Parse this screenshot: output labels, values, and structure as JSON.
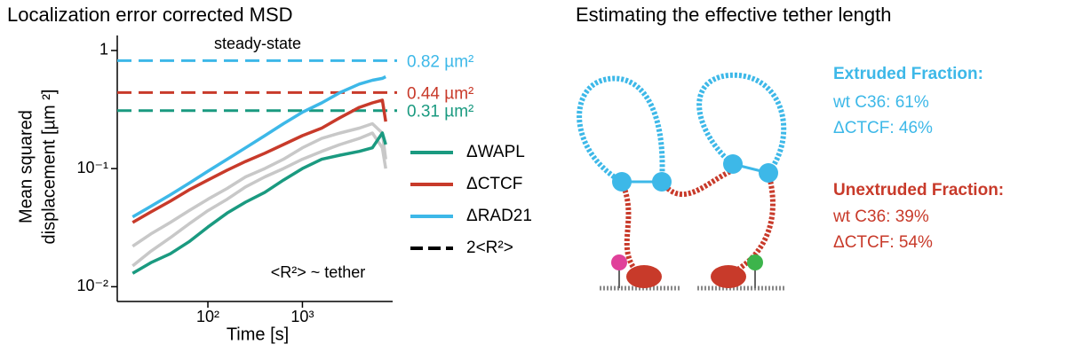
{
  "chart_data": {
    "type": "line",
    "title": "Localization error corrected MSD",
    "x_label": "Time [s]",
    "y_label": [
      "Mean squared",
      "displacement [µm ²]"
    ],
    "log_x": true,
    "log_y": true,
    "xlim": [
      11,
      9000
    ],
    "ylim": [
      0.0075,
      1.34
    ],
    "xticks": [
      {
        "value": 100,
        "label": "10²"
      },
      {
        "value": 1000,
        "label": "10³"
      }
    ],
    "yticks": [
      {
        "value": 0.01,
        "label": "10⁻²"
      },
      {
        "value": 0.1,
        "label": "10⁻¹"
      },
      1
    ],
    "x": [
      16,
      25,
      40,
      63,
      100,
      160,
      250,
      400,
      630,
      1000,
      1600,
      2500,
      4000,
      5500,
      7000,
      7600
    ],
    "series": [
      {
        "color": "#c8c8c8",
        "values": [
          0.022,
          0.028,
          0.035,
          0.044,
          0.055,
          0.068,
          0.085,
          0.1,
          0.12,
          0.15,
          0.18,
          0.2,
          0.22,
          0.24,
          0.2,
          0.12
        ]
      },
      {
        "color": "#c8c8c8",
        "values": [
          0.015,
          0.02,
          0.026,
          0.034,
          0.044,
          0.055,
          0.07,
          0.085,
          0.1,
          0.12,
          0.14,
          0.16,
          0.18,
          0.2,
          0.15,
          0.1
        ]
      },
      {
        "name": "ΔWAPL",
        "color": "#1a9a80",
        "values": [
          0.013,
          0.016,
          0.019,
          0.024,
          0.032,
          0.042,
          0.052,
          0.063,
          0.08,
          0.1,
          0.12,
          0.13,
          0.14,
          0.15,
          0.2,
          0.16
        ]
      },
      {
        "name": "ΔCTCF",
        "color": "#c83a2a",
        "values": [
          0.035,
          0.043,
          0.053,
          0.066,
          0.08,
          0.097,
          0.115,
          0.135,
          0.16,
          0.19,
          0.22,
          0.27,
          0.33,
          0.36,
          0.38,
          0.25
        ]
      },
      {
        "name": "ΔRAD21",
        "color": "#3db8e8",
        "values": [
          0.039,
          0.048,
          0.06,
          0.075,
          0.095,
          0.12,
          0.15,
          0.19,
          0.24,
          0.3,
          0.36,
          0.44,
          0.52,
          0.56,
          0.58,
          0.6
        ]
      }
    ],
    "reference_lines": [
      {
        "value": 0.82,
        "label": "0.82 µm²",
        "color": "#3db8e8"
      },
      {
        "value": 0.44,
        "label": "0.44 µm²",
        "color": "#c83a2a"
      },
      {
        "value": 0.31,
        "label": "0.31 µm²",
        "color": "#1a9a80"
      }
    ],
    "reference_legend": "2<R²>",
    "annotations": [
      "steady-state",
      "<R²> ~ tether"
    ]
  },
  "diagram": {
    "title": "Estimating the effective tether length",
    "extruded": {
      "heading": "Extruded Fraction:",
      "lines": [
        "wt C36: 61%",
        "ΔCTCF: 46%"
      ]
    },
    "unextruded": {
      "heading": "Unextruded Fraction:",
      "lines": [
        "wt C36: 39%",
        "ΔCTCF: 54%"
      ]
    }
  }
}
